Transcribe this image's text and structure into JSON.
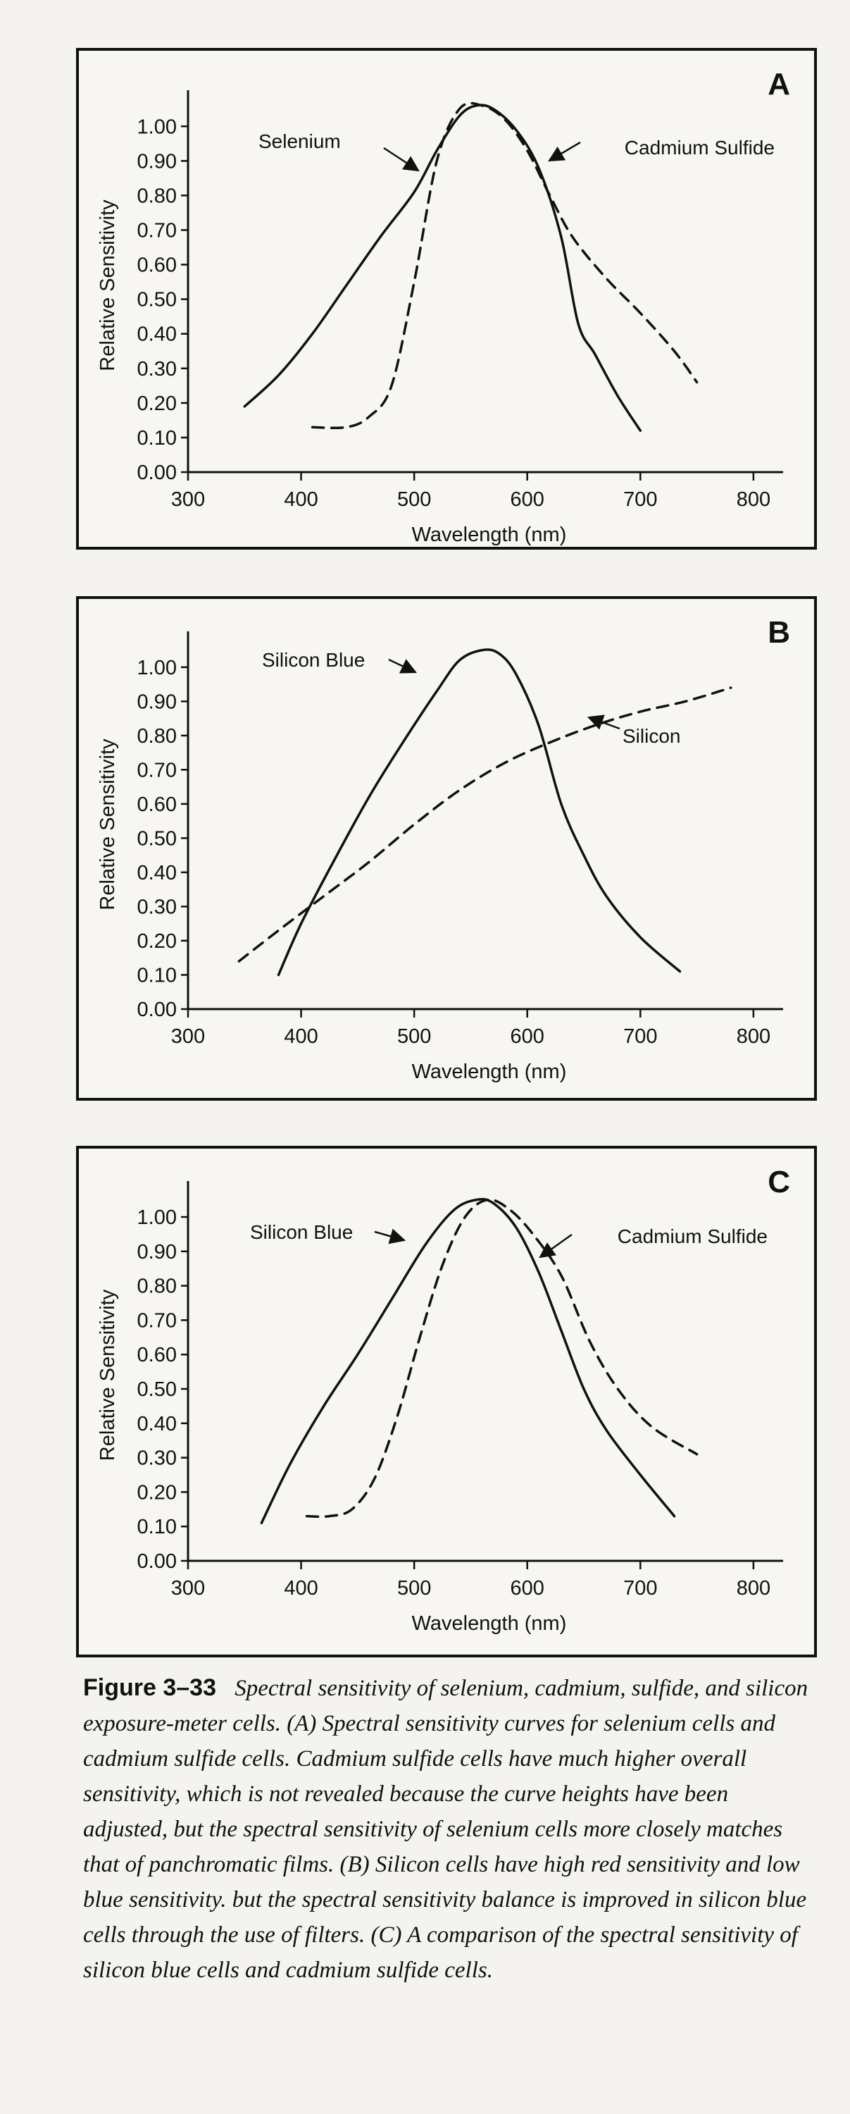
{
  "figure": {
    "label": "Figure 3–33",
    "caption": "Spectral sensitivity of selenium, cadmium, sulfide, and silicon exposure-meter cells. (A) Spectral sensitivity curves for selenium cells and cadmium sulfide cells. Cadmium sulfide cells have much higher overall sensitivity, which is not revealed because the curve heights have been adjusted, but the spectral sensitivity of selenium cells more closely matches that of panchromatic films. (B) Silicon cells have high red sensitivity and low blue sensitivity. but the spectral sensitivity balance is improved in silicon blue cells through the use of filters. (C) A comparison of the spectral sensitivity of silicon blue cells and cadmium sulfide cells."
  },
  "chart_data": [
    {
      "type": "line",
      "panel": "A",
      "xlabel": "Wavelength (nm)",
      "ylabel": "Relative  Sensitivity",
      "xlim": [
        300,
        820
      ],
      "ylim": [
        0,
        1.08
      ],
      "xticks": [
        "300",
        "400",
        "500",
        "600",
        "700",
        "800"
      ],
      "yticks": [
        "0.00",
        "0.10",
        "0.20",
        "0.30",
        "0.40",
        "0.50",
        "0.60",
        "0.70",
        "0.80",
        "0.90",
        "1.00"
      ],
      "grid": false,
      "series": [
        {
          "name": "Selenium",
          "style": "solid",
          "x": [
            350,
            380,
            410,
            440,
            470,
            500,
            520,
            540,
            555,
            570,
            590,
            610,
            630,
            645,
            660,
            680,
            700
          ],
          "y": [
            0.19,
            0.28,
            0.4,
            0.54,
            0.68,
            0.81,
            0.93,
            1.03,
            1.06,
            1.05,
            0.99,
            0.88,
            0.68,
            0.43,
            0.34,
            0.22,
            0.12
          ]
        },
        {
          "name": "Cadmium Sulfide",
          "style": "dashed",
          "x": [
            410,
            440,
            460,
            480,
            500,
            520,
            540,
            560,
            580,
            600,
            620,
            640,
            670,
            700,
            730,
            750
          ],
          "y": [
            0.13,
            0.13,
            0.16,
            0.25,
            0.55,
            0.9,
            1.05,
            1.06,
            1.02,
            0.93,
            0.8,
            0.68,
            0.56,
            0.46,
            0.35,
            0.26
          ]
        }
      ]
    },
    {
      "type": "line",
      "panel": "B",
      "xlabel": "Wavelength (nm)",
      "ylabel": "Relative  Sensitivity",
      "xlim": [
        300,
        820
      ],
      "ylim": [
        0,
        1.08
      ],
      "xticks": [
        "300",
        "400",
        "500",
        "600",
        "700",
        "800"
      ],
      "yticks": [
        "0.00",
        "0.10",
        "0.20",
        "0.30",
        "0.40",
        "0.50",
        "0.60",
        "0.70",
        "0.80",
        "0.90",
        "1.00"
      ],
      "grid": false,
      "series": [
        {
          "name": "Silicon Blue",
          "style": "solid",
          "x": [
            380,
            400,
            430,
            460,
            490,
            520,
            540,
            560,
            575,
            590,
            610,
            630,
            650,
            670,
            700,
            735
          ],
          "y": [
            0.1,
            0.25,
            0.44,
            0.62,
            0.78,
            0.93,
            1.02,
            1.05,
            1.04,
            0.98,
            0.83,
            0.6,
            0.45,
            0.33,
            0.21,
            0.11
          ]
        },
        {
          "name": "Silicon",
          "style": "dashed",
          "x": [
            345,
            380,
            420,
            460,
            500,
            540,
            580,
            620,
            660,
            700,
            740,
            780
          ],
          "y": [
            0.14,
            0.23,
            0.33,
            0.43,
            0.54,
            0.64,
            0.72,
            0.78,
            0.83,
            0.87,
            0.9,
            0.94
          ]
        }
      ]
    },
    {
      "type": "line",
      "panel": "C",
      "xlabel": "Wavelength (nm)",
      "ylabel": "Relative  Sensitivity",
      "xlim": [
        300,
        820
      ],
      "ylim": [
        0,
        1.08
      ],
      "xticks": [
        "300",
        "400",
        "500",
        "600",
        "700",
        "800"
      ],
      "yticks": [
        "0.00",
        "0.10",
        "0.20",
        "0.30",
        "0.40",
        "0.50",
        "0.60",
        "0.70",
        "0.80",
        "0.90",
        "1.00"
      ],
      "grid": false,
      "series": [
        {
          "name": "Silicon Blue",
          "style": "solid",
          "x": [
            365,
            390,
            420,
            450,
            480,
            510,
            535,
            555,
            570,
            590,
            610,
            630,
            650,
            670,
            700,
            730
          ],
          "y": [
            0.11,
            0.28,
            0.45,
            0.6,
            0.76,
            0.92,
            1.02,
            1.05,
            1.04,
            0.97,
            0.84,
            0.67,
            0.5,
            0.38,
            0.25,
            0.13
          ]
        },
        {
          "name": "Cadmium Sulfide",
          "style": "dashed",
          "x": [
            405,
            425,
            445,
            465,
            485,
            505,
            525,
            545,
            565,
            585,
            605,
            630,
            655,
            680,
            710,
            750
          ],
          "y": [
            0.13,
            0.13,
            0.15,
            0.24,
            0.42,
            0.65,
            0.86,
            1.0,
            1.05,
            1.02,
            0.95,
            0.83,
            0.64,
            0.5,
            0.39,
            0.31
          ]
        }
      ]
    }
  ]
}
